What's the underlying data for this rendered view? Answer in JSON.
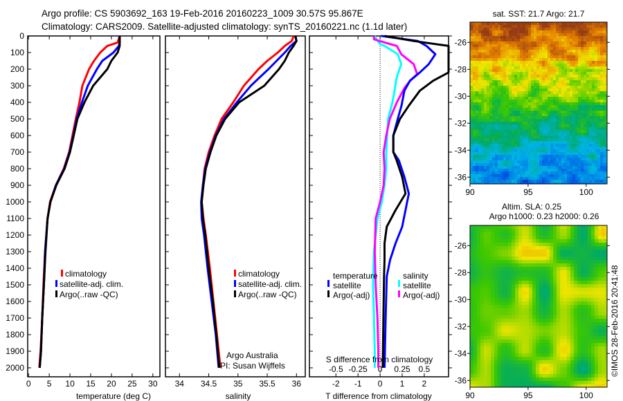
{
  "header": {
    "line1": "Argo profile: CS 5903692_163 19-Feb-2016 20160223_1009 30.57S 95.867E",
    "line2": "Climatology: CARS2009. Satellite-adjusted climatology: synTS_20160221.nc (1.1d later)"
  },
  "colors": {
    "climatology": "#ff0000",
    "satellite": "#0000ff",
    "argo": "#000000",
    "sal_satellite": "#00ffff",
    "sal_argo": "#ff00ff"
  },
  "chart_data": [
    {
      "type": "line",
      "title": "",
      "xlabel": "temperature (deg C)",
      "ylabel": "",
      "xlim": [
        -0.2,
        31.7
      ],
      "ylim": [
        2050,
        0
      ],
      "xticks": [
        "0",
        "5",
        "10",
        "15",
        "20",
        "25",
        "30"
      ],
      "xtick_values": [
        0,
        5,
        10,
        15,
        20,
        25,
        30
      ],
      "yticks": [
        "0",
        "100",
        "200",
        "300",
        "400",
        "500",
        "600",
        "700",
        "800",
        "900",
        "1000",
        "1100",
        "1200",
        "1300",
        "1400",
        "1500",
        "1600",
        "1700",
        "1800",
        "1900",
        "2000"
      ],
      "depth": [
        0,
        40,
        60,
        100,
        150,
        200,
        300,
        400,
        500,
        600,
        700,
        800,
        900,
        1000,
        1100,
        1300,
        1500,
        1700,
        1900,
        2000
      ],
      "series": [
        {
          "name": "climatology",
          "color": "#ff0000",
          "values": [
            22,
            21.5,
            19,
            17.3,
            15.8,
            14.6,
            13,
            12.3,
            11.4,
            10.6,
            9.8,
            8.5,
            6.6,
            5.2,
            4.6,
            4.0,
            3.6,
            3.3,
            2.9,
            2.6
          ]
        },
        {
          "name": "satellite-adj. clim.",
          "color": "#0000ff",
          "values": [
            22,
            22,
            21.8,
            20.5,
            17.8,
            16.5,
            14.3,
            12.9,
            11.6,
            10.8,
            9.9,
            8.6,
            6.6,
            5.3,
            4.6,
            4.0,
            3.7,
            3.3,
            3.0,
            2.7
          ]
        },
        {
          "name": "Argo(..raw -QC)",
          "color": "#000000",
          "values": [
            22,
            22,
            22,
            21.5,
            20,
            19,
            15.6,
            13.5,
            11.8,
            10.9,
            10,
            8.7,
            6.7,
            5.3,
            4.6,
            4.1,
            3.7,
            3.3,
            3.0,
            2.7
          ]
        }
      ],
      "legend": [
        "climatology",
        "satellite-adj. clim.",
        "Argo(..raw -QC)"
      ]
    },
    {
      "type": "line",
      "xlabel": "salinity",
      "xlim": [
        33.76,
        36.15
      ],
      "ylim": [
        2050,
        0
      ],
      "xticks": [
        "34",
        "34.5",
        "35",
        "35.5",
        "36"
      ],
      "xtick_values": [
        34,
        34.5,
        35,
        35.5,
        36
      ],
      "depth": [
        0,
        30,
        60,
        100,
        150,
        200,
        300,
        400,
        500,
        600,
        700,
        800,
        900,
        1000,
        1100,
        1200,
        1400,
        1600,
        1800,
        2000
      ],
      "series": [
        {
          "name": "climatology",
          "color": "#ff0000",
          "values": [
            35.95,
            35.92,
            35.8,
            35.68,
            35.5,
            35.35,
            35.1,
            34.92,
            34.72,
            34.6,
            34.5,
            34.43,
            34.4,
            34.38,
            34.41,
            34.45,
            34.52,
            34.58,
            34.64,
            34.7
          ]
        },
        {
          "name": "satellite-adj. clim.",
          "color": "#0000ff",
          "values": [
            35.98,
            36.0,
            35.9,
            35.8,
            35.66,
            35.52,
            35.22,
            34.98,
            34.76,
            34.62,
            34.52,
            34.44,
            34.4,
            34.37,
            34.38,
            34.42,
            34.48,
            34.55,
            34.62,
            34.67
          ]
        },
        {
          "name": "Argo(..raw -QC)",
          "color": "#000000",
          "values": [
            35.98,
            36.0,
            35.95,
            35.87,
            35.8,
            35.7,
            35.45,
            35.02,
            34.78,
            34.63,
            34.53,
            34.45,
            34.41,
            34.38,
            34.4,
            34.44,
            34.5,
            34.57,
            34.63,
            34.68
          ]
        }
      ],
      "legend": [
        "climatology",
        "satellite-adj. clim.",
        "Argo(..raw -QC)"
      ],
      "annotation1": "Argo Australia",
      "annotation2": "PI: Susan Wijffels"
    },
    {
      "type": "line",
      "xlabel": "T difference from climatology",
      "x2label": "S difference from climatology",
      "xlim": [
        -3.2,
        3.1
      ],
      "ylim": [
        2050,
        0
      ],
      "xticks": [
        "-2",
        "-1",
        "0",
        "1",
        "2"
      ],
      "xtick_values": [
        -2,
        -1,
        0,
        1,
        2
      ],
      "x2ticks": [
        "-0.5",
        "-0.25",
        "0",
        "0.25",
        "0.5"
      ],
      "x2tick_values": [
        -0.5,
        -0.25,
        0,
        0.25,
        0.5
      ],
      "temperature_depth": [
        0,
        30,
        60,
        110,
        170,
        220,
        270,
        330,
        420,
        500,
        600,
        700,
        750,
        850,
        950,
        1050,
        1150,
        1250,
        1350,
        1450,
        1700,
        2000
      ],
      "temperature_series": [
        {
          "name": "satellite",
          "color": "#0000ff",
          "values": [
            0.05,
            1.7,
            2.1,
            2.5,
            2.2,
            1.8,
            1.35,
            1.1,
            0.97,
            0.8,
            0.6,
            0.6,
            0.85,
            1.1,
            1.3,
            1.15,
            1.0,
            0.7,
            0.45,
            0.3,
            0.25,
            0.2
          ]
        },
        {
          "name": "Argo(-adj)",
          "color": "#000000",
          "values": [
            0.2,
            1.5,
            3.2,
            3.2,
            3.2,
            3.2,
            2.4,
            1.8,
            1.3,
            0.9,
            0.6,
            0.6,
            0.75,
            1.0,
            1.15,
            0.7,
            0.3,
            0.2,
            0.2,
            0.18,
            0.15,
            0.12
          ]
        }
      ],
      "salinity_depth": [
        0,
        20,
        50,
        60,
        110,
        170,
        230,
        270,
        310,
        400,
        500,
        600,
        700,
        800,
        900,
        1000,
        1100,
        1300,
        1500,
        1700,
        1900,
        2000
      ],
      "salinity_series": [
        {
          "name": "satellite",
          "color": "#00ffff",
          "values": [
            -0.06,
            -0.04,
            0.0,
            0.05,
            0.2,
            0.24,
            0.2,
            0.18,
            0.17,
            0.14,
            0.09,
            0.08,
            0.07,
            0.07,
            0.05,
            0.02,
            -0.03,
            -0.07,
            -0.08,
            -0.07,
            -0.06,
            -0.06
          ]
        },
        {
          "name": "Argo(-adj)",
          "color": "#ff00ff",
          "values": [
            -0.07,
            -0.07,
            0.12,
            0.19,
            0.24,
            0.38,
            0.42,
            0.34,
            0.28,
            0.19,
            0.11,
            0.07,
            0.04,
            0.05,
            0.04,
            0.0,
            -0.05,
            -0.06,
            -0.05,
            -0.03,
            -0.02,
            -0.02
          ]
        }
      ],
      "legend_temperature_title": "temperature",
      "legend_salinity_title": "salinity",
      "legend_temperature": [
        "satellite",
        "Argo(-adj)"
      ],
      "legend_salinity": [
        "satellite",
        "Argo(-adj)"
      ]
    },
    {
      "type": "heatmap",
      "title": "sat. SST: 21.7 Argo: 21.7",
      "xlim": [
        90,
        101.8
      ],
      "ylim": [
        -36.5,
        -24.5
      ],
      "xticks": [
        "90",
        "95",
        "100"
      ],
      "xtick_values": [
        90,
        95,
        100
      ],
      "yticks": [
        "-26",
        "-28",
        "-30",
        "-32",
        "-34",
        "-36"
      ],
      "ytick_values": [
        -26,
        -28,
        -30,
        -32,
        -34,
        -36
      ]
    },
    {
      "type": "heatmap",
      "title": "Altim. SLA: 0.25",
      "subtitle": "Argo h1000: 0.23 h2000: 0.26",
      "xlim": [
        90,
        101.8
      ],
      "ylim": [
        -36.5,
        -24.5
      ],
      "xticks": [
        "90",
        "95",
        "100"
      ],
      "xtick_values": [
        90,
        95,
        100
      ],
      "yticks": [
        "-26",
        "-28",
        "-30",
        "-32",
        "-34",
        "-36"
      ],
      "ytick_values": [
        -26,
        -28,
        -30,
        -32,
        -34,
        -36
      ]
    }
  ],
  "footer": {
    "credit": "©IMOS 28-Feb-2016 20:41:48"
  }
}
